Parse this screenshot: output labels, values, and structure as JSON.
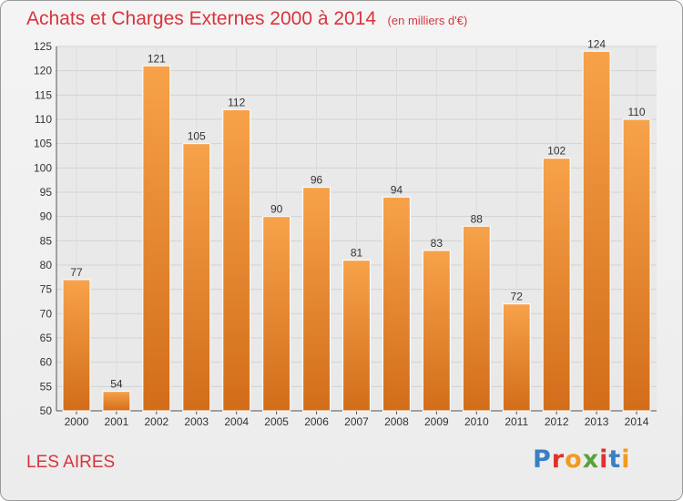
{
  "chart_data": {
    "type": "bar",
    "title": "Achats et Charges Externes 2000 à 2014",
    "subtitle": "(en milliers d'€)",
    "categories": [
      "2000",
      "2001",
      "2002",
      "2003",
      "2004",
      "2005",
      "2006",
      "2007",
      "2008",
      "2009",
      "2010",
      "2011",
      "2012",
      "2013",
      "2014"
    ],
    "values": [
      77,
      54,
      121,
      105,
      112,
      90,
      96,
      81,
      94,
      83,
      88,
      72,
      102,
      124,
      110
    ],
    "ylim": [
      50,
      125
    ],
    "yticks": [
      50,
      55,
      60,
      65,
      70,
      75,
      80,
      85,
      90,
      95,
      100,
      105,
      110,
      115,
      120,
      125
    ],
    "grid": true,
    "legend": "none",
    "bar_color": "#f0932f",
    "bar_color_dark": "#d8711c"
  },
  "footer": {
    "commune": "LES AIRES",
    "logo_text": "Proxiti"
  },
  "colors": {
    "title": "#d8343c",
    "logo": [
      "#3a7fc4",
      "#e0312b",
      "#f39a1e",
      "#58a33a",
      "#e0312b",
      "#3a7fc4",
      "#f39a1e"
    ]
  }
}
